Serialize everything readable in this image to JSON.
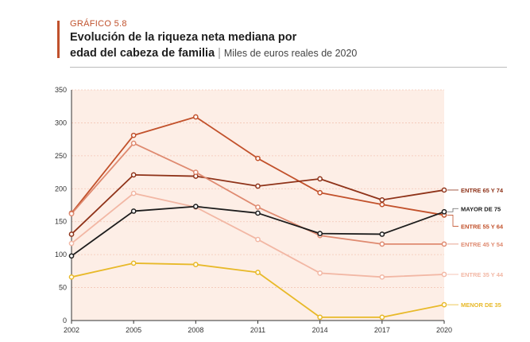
{
  "header": {
    "kicker": "GRÁFICO 5.8",
    "title_line1": "Evolución de la riqueza neta mediana por",
    "title_line2": "edad del cabeza de familia",
    "unit": "Miles de euros reales de 2020"
  },
  "chart_data": {
    "type": "line",
    "title": "Evolución de la riqueza neta mediana por edad del cabeza de familia",
    "subtitle": "Miles de euros reales de 2020",
    "x": [
      2002,
      2005,
      2008,
      2011,
      2014,
      2017,
      2020
    ],
    "ylim": [
      0,
      350
    ],
    "yticks": [
      0,
      50,
      100,
      150,
      200,
      250,
      300,
      350
    ],
    "grid": true,
    "legend": "direct-labels-right",
    "series": [
      {
        "name": "ENTRE 55 Y 64",
        "color": "#c2512b",
        "values": [
          163,
          281,
          309,
          246,
          194,
          176,
          160
        ]
      },
      {
        "name": "ENTRE 65 Y 74",
        "color": "#8f3319",
        "values": [
          131,
          221,
          219,
          204,
          215,
          183,
          198
        ]
      },
      {
        "name": "ENTRE 45 Y 54",
        "color": "#df8a70",
        "values": [
          162,
          269,
          225,
          172,
          129,
          116,
          116
        ]
      },
      {
        "name": "ENTRE 35 Y 44",
        "color": "#f2b7a4",
        "values": [
          117,
          193,
          172,
          123,
          72,
          66,
          70
        ]
      },
      {
        "name": "MAYOR DE 75",
        "color": "#1c1c1c",
        "values": [
          98,
          166,
          173,
          163,
          132,
          131,
          165
        ]
      },
      {
        "name": "MENOR DE 35",
        "color": "#e8b929",
        "values": [
          66,
          87,
          85,
          73,
          5,
          5,
          24
        ]
      }
    ]
  }
}
